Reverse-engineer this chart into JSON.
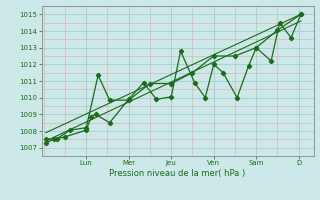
{
  "xlabel": "Pression niveau de la mer( hPa )",
  "bg_color": "#cce8e8",
  "grid_color_major": "#aacccc",
  "grid_color_minor": "#ddaaaa",
  "line_color": "#1a6b1a",
  "marker_color": "#1a6b1a",
  "ylim": [
    1006.5,
    1015.5
  ],
  "yticks": [
    1007,
    1008,
    1009,
    1010,
    1011,
    1012,
    1013,
    1014,
    1015
  ],
  "day_labels": [
    "Lun",
    "Mer",
    "Jeu",
    "Ven",
    "Sam",
    "D"
  ],
  "day_positions": [
    1.0,
    2.0,
    3.0,
    4.0,
    5.0,
    6.0
  ],
  "xlim": [
    -0.05,
    6.35
  ],
  "series1_x": [
    0.05,
    0.25,
    0.5,
    1.0,
    1.12,
    1.22,
    1.55,
    2.0,
    2.35,
    2.65,
    3.0,
    3.22,
    3.55,
    3.8,
    4.0,
    4.22,
    4.55,
    4.82,
    5.0,
    5.35,
    5.55,
    5.82,
    6.05
  ],
  "series1_y": [
    1007.3,
    1007.5,
    1007.65,
    1008.05,
    1008.85,
    1009.0,
    1008.5,
    1009.9,
    1010.9,
    1009.9,
    1010.05,
    1012.8,
    1010.9,
    1010.0,
    1012.0,
    1011.5,
    1010.0,
    1011.9,
    1013.0,
    1012.2,
    1014.5,
    1013.6,
    1015.0
  ],
  "series2_x": [
    0.05,
    0.32,
    0.62,
    1.0,
    1.28,
    1.55,
    2.0,
    2.5,
    3.0,
    3.5,
    4.0,
    4.5,
    5.0,
    5.5,
    6.05
  ],
  "series2_y": [
    1007.5,
    1007.55,
    1008.05,
    1008.2,
    1011.35,
    1009.85,
    1009.85,
    1010.85,
    1010.85,
    1011.5,
    1012.5,
    1012.5,
    1013.0,
    1014.05,
    1015.0
  ],
  "trend_x": [
    0.05,
    6.05
  ],
  "trend_y": [
    1007.4,
    1014.6
  ],
  "trend2_x": [
    0.05,
    6.05
  ],
  "trend2_y": [
    1007.9,
    1015.0
  ]
}
